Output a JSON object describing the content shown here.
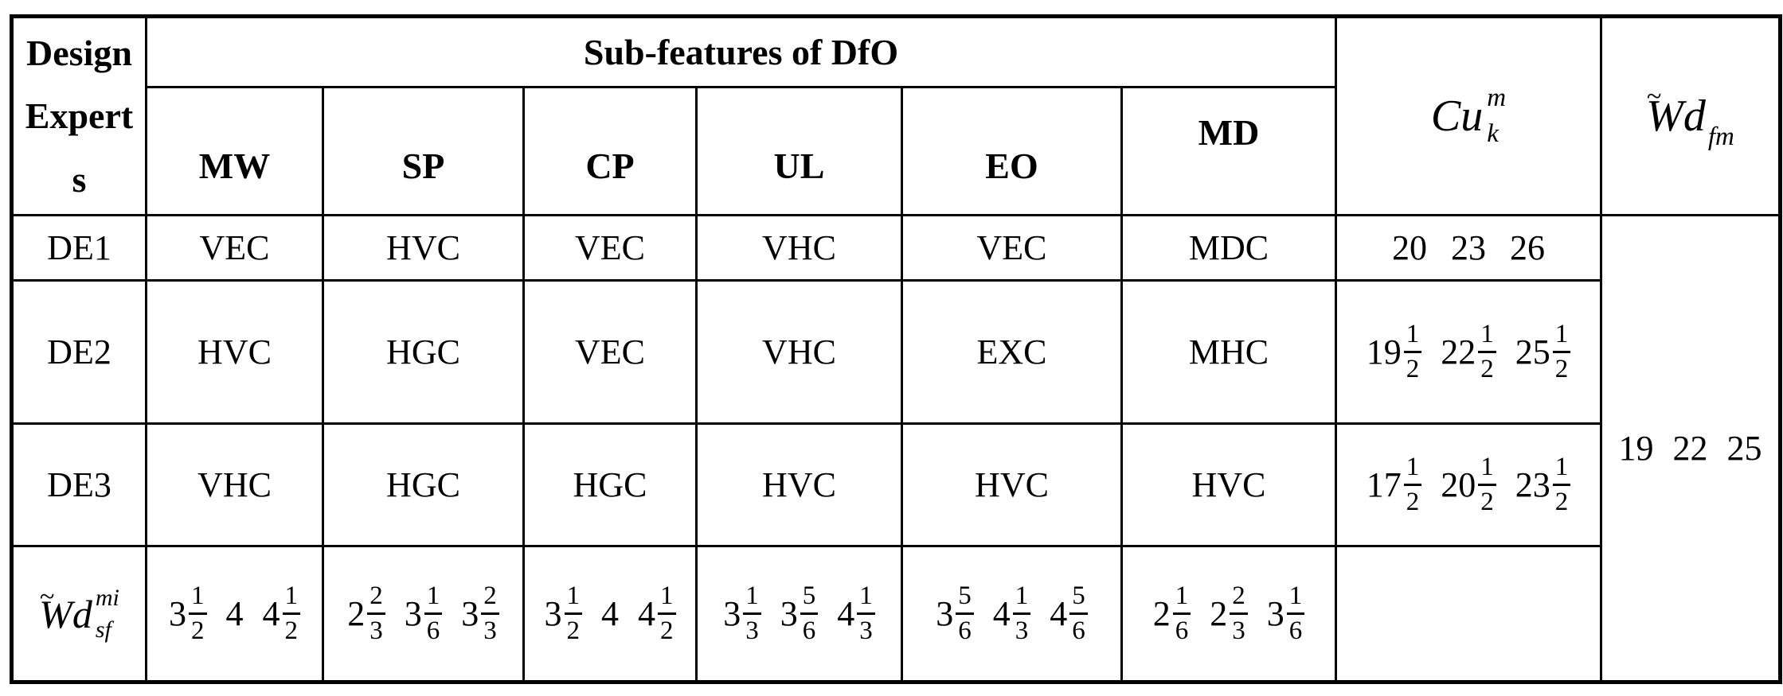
{
  "table": {
    "corner": "Design\nExpert\ns",
    "group_header": "Sub-features of DfO",
    "sub_headers": [
      "MW",
      "SP",
      "CP",
      "UL",
      "EO",
      "MD"
    ],
    "cu_header": {
      "base": "Cu",
      "sup": "m",
      "sub": "k"
    },
    "wdfm_header": {
      "tilde": "~",
      "base": "Wd",
      "sub": "fm"
    },
    "rows": [
      {
        "label": "DE1",
        "ratings": [
          "VEC",
          "HVC",
          "VEC",
          "VHC",
          "VEC",
          "MDC"
        ],
        "cu": [
          "20",
          "23",
          "26"
        ]
      },
      {
        "label": "DE2",
        "ratings": [
          "HVC",
          "HGC",
          "VEC",
          "VHC",
          "EXC",
          "MHC"
        ],
        "cu": [
          "19 1/2",
          "22 1/2",
          "25 1/2"
        ]
      },
      {
        "label": "DE3",
        "ratings": [
          "VHC",
          "HGC",
          "HGC",
          "HVC",
          "HVC",
          "HVC"
        ],
        "cu": [
          "17 1/2",
          "20 1/2",
          "23 1/2"
        ]
      }
    ],
    "footer": {
      "label": {
        "tilde": "~",
        "base": "Wd",
        "sup": "mi",
        "sub": "sf"
      },
      "values": [
        [
          "3 1/2",
          "4",
          "4 1/2"
        ],
        [
          "2 2/3",
          "3 1/6",
          "3 2/3"
        ],
        [
          "3 1/2",
          "4",
          "4 1/2"
        ],
        [
          "3 1/3",
          "3 5/6",
          "4 1/3"
        ],
        [
          "3 5/6",
          "4 1/3",
          "4 5/6"
        ],
        [
          "2 1/6",
          "2 2/3",
          "3 1/6"
        ]
      ]
    },
    "wdfm_values": [
      "19",
      "22",
      "25"
    ]
  },
  "colors": {
    "background": "#ffffff",
    "border": "#000000",
    "text": "#000000"
  }
}
